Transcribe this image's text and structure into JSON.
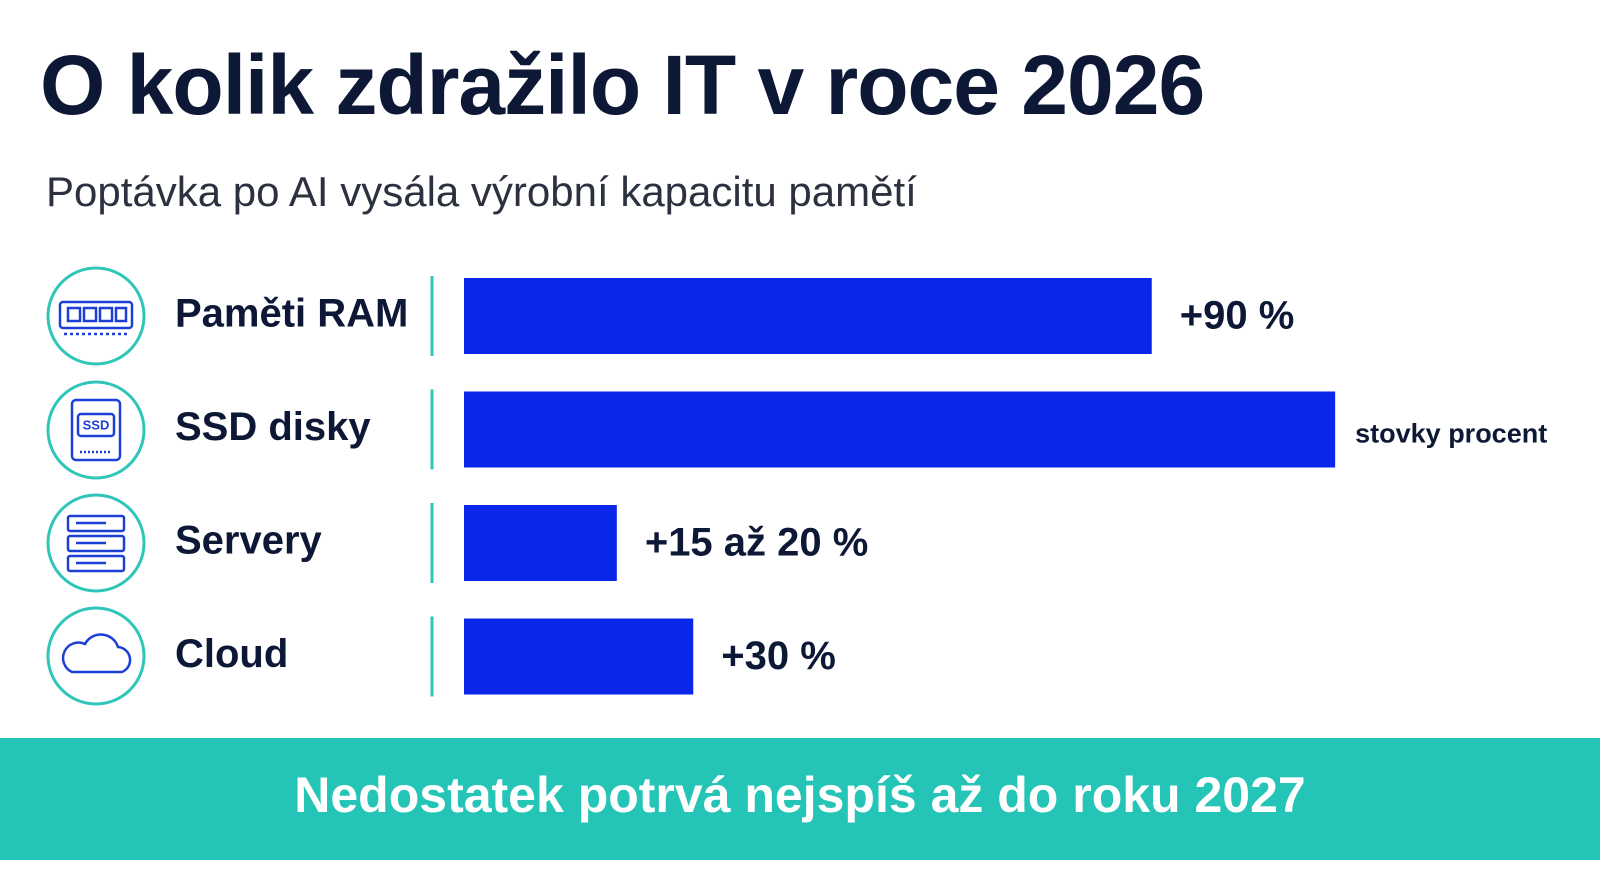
{
  "chart_data": {
    "type": "bar",
    "orientation": "horizontal",
    "title": "O kolik zdražilo IT v roce 2026",
    "subtitle": "Poptávka po AI vysála výrobní kapacitu pamětí",
    "categories": [
      "Paměti RAM",
      "SSD disky",
      "Servery",
      "Cloud"
    ],
    "values": [
      90,
      114,
      20,
      30
    ],
    "value_labels": [
      "+90 %",
      "stovky procent",
      "+15 až 20 %",
      "+30 %"
    ],
    "color": "#0a26e8",
    "xlim": [
      0,
      120
    ],
    "footer": "Nedostatek potrvá nejspíš až do roku 2027"
  }
}
